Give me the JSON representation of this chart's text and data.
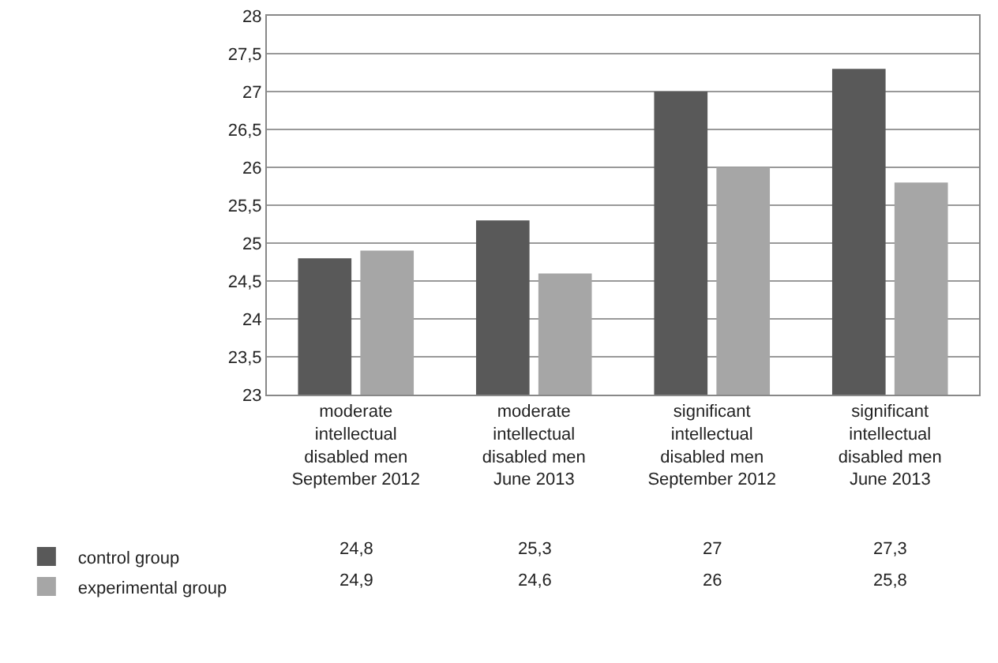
{
  "chart_data": {
    "type": "bar",
    "categories": [
      "moderate intellectual disabled men September 2012",
      "moderate intellectual disabled men June 2013",
      "significant intellectual disabled men September 2012",
      "significant intellectual disabled men June 2013"
    ],
    "series": [
      {
        "name": "control group",
        "color": "#595959",
        "values": [
          24.8,
          25.3,
          27,
          27.3
        ],
        "value_labels": [
          "24,8",
          "25,3",
          "27",
          "27,3"
        ]
      },
      {
        "name": "experimental group",
        "color": "#a6a6a6",
        "values": [
          24.9,
          24.6,
          26,
          25.8
        ],
        "value_labels": [
          "24,9",
          "24,6",
          "26",
          "25,8"
        ]
      }
    ],
    "ylim": [
      23,
      28
    ],
    "yticks": [
      23,
      {
        "value": 23.5,
        "label": "23,5"
      },
      24,
      {
        "value": 24.5,
        "label": "24,5"
      },
      25,
      {
        "value": 25.5,
        "label": "25,5"
      },
      26,
      {
        "value": 26.5,
        "label": "26,5"
      },
      27,
      {
        "value": 27.5,
        "label": "27,5"
      },
      28
    ],
    "grid": "y",
    "legend": "bottom left"
  }
}
